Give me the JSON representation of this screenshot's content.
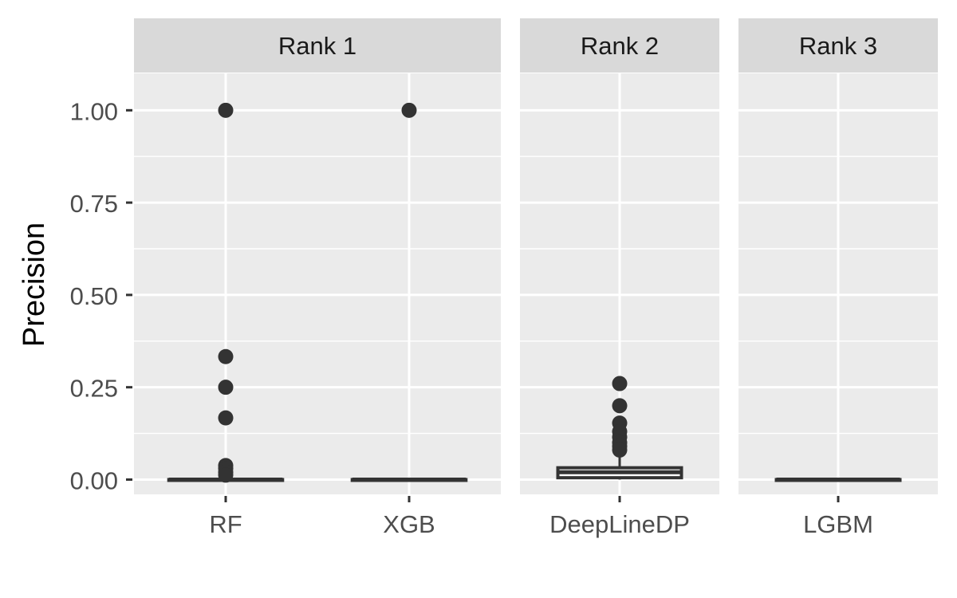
{
  "chart_data": {
    "type": "boxplot",
    "ylabel": "Precision",
    "xlabel": "",
    "ylim": [
      -0.04,
      1.1
    ],
    "y_ticks": [
      0.0,
      0.25,
      0.5,
      0.75,
      1.0
    ],
    "y_tick_labels": [
      "0.00",
      "0.25",
      "0.50",
      "0.75",
      "1.00"
    ],
    "grid": true,
    "panels": [
      {
        "title": "Rank 1",
        "categories": [
          {
            "name": "RF",
            "q1": 0.0,
            "median": 0.0,
            "q3": 0.0,
            "whisker_low": 0.0,
            "whisker_high": 0.0,
            "outliers": [
              1.0,
              0.333,
              0.25,
              0.167,
              0.038,
              0.03,
              0.02,
              0.012
            ]
          },
          {
            "name": "XGB",
            "q1": 0.0,
            "median": 0.0,
            "q3": 0.0,
            "whisker_low": 0.0,
            "whisker_high": 0.0,
            "outliers": [
              1.0
            ]
          }
        ]
      },
      {
        "title": "Rank 2",
        "categories": [
          {
            "name": "DeepLineDP",
            "q1": 0.005,
            "median": 0.02,
            "q3": 0.032,
            "whisker_low": 0.0,
            "whisker_high": 0.07,
            "outliers": [
              0.26,
              0.2,
              0.153,
              0.13,
              0.115,
              0.1,
              0.09,
              0.08
            ]
          }
        ]
      },
      {
        "title": "Rank 3",
        "categories": [
          {
            "name": "LGBM",
            "q1": 0.0,
            "median": 0.0,
            "q3": 0.0,
            "whisker_low": 0.0,
            "whisker_high": 0.0,
            "outliers": []
          }
        ]
      }
    ],
    "colors": {
      "panel_bg": "#EBEBEB",
      "strip_bg": "#D9D9D9",
      "grid": "#FFFFFF",
      "box": "#333333",
      "text": "#4D4D4D",
      "title_text": "#1A1A1A"
    }
  }
}
